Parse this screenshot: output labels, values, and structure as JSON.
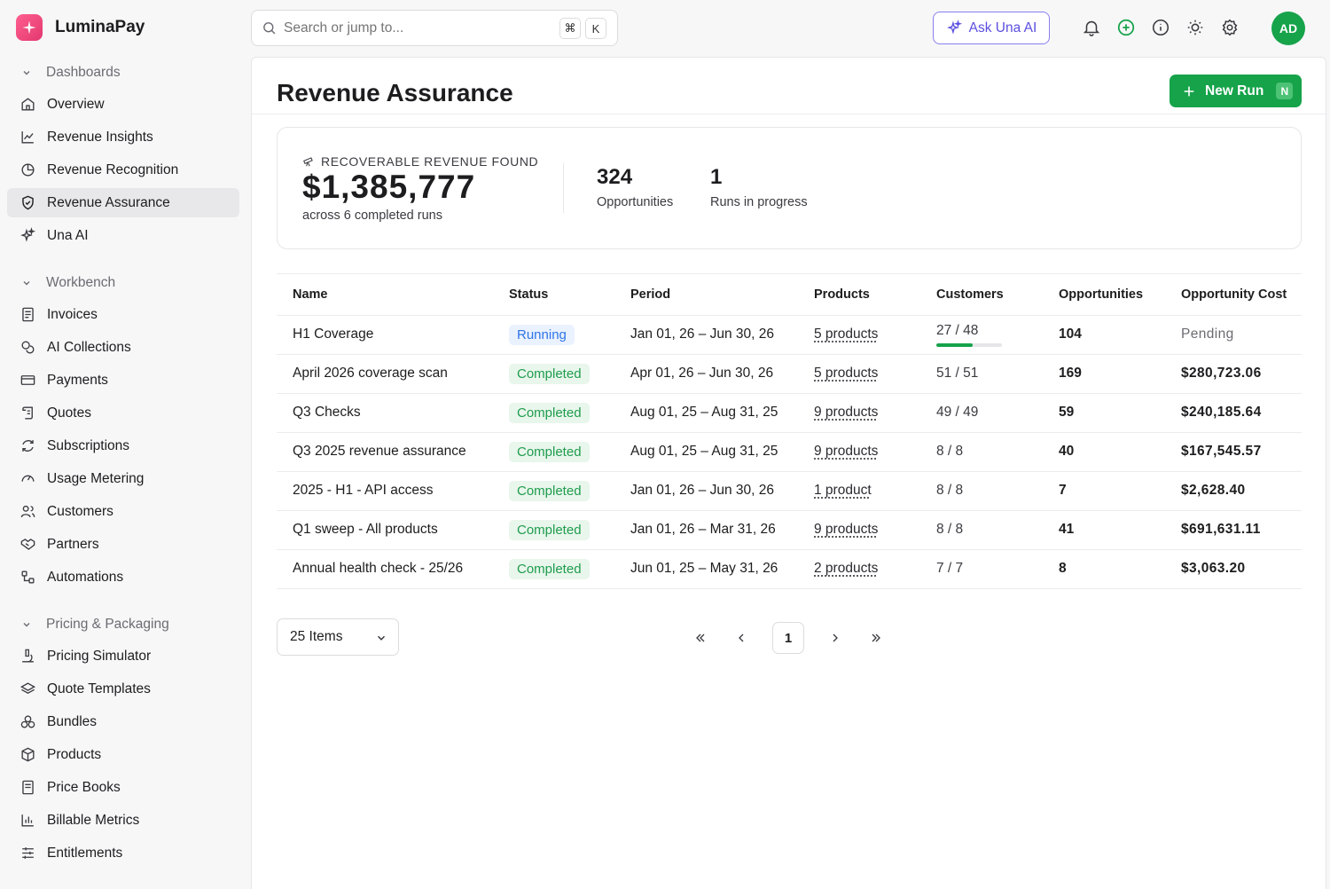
{
  "app": {
    "name": "LuminaPay"
  },
  "colors": {
    "brand": "#e83e74",
    "accent_green": "#16a34a",
    "ai_purple": "#5b4fe0",
    "running_blue": "#2f74e6"
  },
  "search": {
    "placeholder": "Search or jump to...",
    "shortcut_1": "⌘",
    "shortcut_2": "K"
  },
  "topbar": {
    "ask_ai": "Ask Una AI",
    "avatar_initials": "AD",
    "icons": [
      "bell-icon",
      "plus-circle-icon",
      "info-icon",
      "sun-icon",
      "gear-icon"
    ]
  },
  "sidebar": {
    "sections": [
      {
        "title": "Dashboards",
        "items": [
          {
            "label": "Overview",
            "icon": "home-icon"
          },
          {
            "label": "Revenue Insights",
            "icon": "line-chart-icon"
          },
          {
            "label": "Revenue Recognition",
            "icon": "pie-chart-icon"
          },
          {
            "label": "Revenue Assurance",
            "icon": "shield-check-icon",
            "active": true
          },
          {
            "label": "Una AI",
            "icon": "sparkles-icon"
          }
        ]
      },
      {
        "title": "Workbench",
        "items": [
          {
            "label": "Invoices",
            "icon": "invoice-icon"
          },
          {
            "label": "AI Collections",
            "icon": "coins-icon"
          },
          {
            "label": "Payments",
            "icon": "credit-card-icon"
          },
          {
            "label": "Quotes",
            "icon": "scroll-icon"
          },
          {
            "label": "Subscriptions",
            "icon": "refresh-icon"
          },
          {
            "label": "Usage Metering",
            "icon": "gauge-icon"
          },
          {
            "label": "Customers",
            "icon": "users-icon"
          },
          {
            "label": "Partners",
            "icon": "handshake-icon"
          },
          {
            "label": "Automations",
            "icon": "workflow-icon"
          }
        ]
      },
      {
        "title": "Pricing & Packaging",
        "items": [
          {
            "label": "Pricing Simulator",
            "icon": "microscope-icon"
          },
          {
            "label": "Quote Templates",
            "icon": "layers-icon"
          },
          {
            "label": "Bundles",
            "icon": "boxes-icon"
          },
          {
            "label": "Products",
            "icon": "package-icon"
          },
          {
            "label": "Price Books",
            "icon": "book-icon"
          },
          {
            "label": "Billable Metrics",
            "icon": "bar-chart-icon"
          },
          {
            "label": "Entitlements",
            "icon": "sliders-icon"
          }
        ]
      }
    ]
  },
  "page": {
    "title": "Revenue Assurance",
    "new_run": "New Run",
    "new_run_shortcut": "N"
  },
  "summary": {
    "label": "RECOVERABLE REVENUE FOUND",
    "value": "$1,385,777",
    "sub": "across 6 completed runs",
    "stats": [
      {
        "num": "324",
        "label": "Opportunities"
      },
      {
        "num": "1",
        "label": "Runs in progress"
      }
    ]
  },
  "table": {
    "headers": [
      "Name",
      "Status",
      "Period",
      "Products",
      "Customers",
      "Opportunities",
      "Opportunity Cost"
    ],
    "rows": [
      {
        "name": "H1 Coverage",
        "status": "Running",
        "period": "Jan 01, 26 – Jun 30, 26",
        "products": "5 products",
        "customers": "27 / 48",
        "progress": 0.56,
        "opportunities": "104",
        "cost": "Pending"
      },
      {
        "name": "April 2026 coverage scan",
        "status": "Completed",
        "period": "Apr 01, 26 – Jun 30, 26",
        "products": "5 products",
        "customers": "51 / 51",
        "opportunities": "169",
        "cost": "$280,723.06"
      },
      {
        "name": "Q3 Checks",
        "status": "Completed",
        "period": "Aug 01, 25 – Aug 31, 25",
        "products": "9 products",
        "customers": "49 / 49",
        "opportunities": "59",
        "cost": "$240,185.64"
      },
      {
        "name": "Q3 2025 revenue assurance",
        "status": "Completed",
        "period": "Aug 01, 25 – Aug 31, 25",
        "products": "9 products",
        "customers": "8 / 8",
        "opportunities": "40",
        "cost": "$167,545.57"
      },
      {
        "name": "2025 - H1 - API access",
        "status": "Completed",
        "period": "Jan 01, 26 – Jun 30, 26",
        "products": "1 product",
        "customers": "8 / 8",
        "opportunities": "7",
        "cost": "$2,628.40"
      },
      {
        "name": "Q1 sweep - All products",
        "status": "Completed",
        "period": "Jan 01, 26 – Mar 31, 26",
        "products": "9 products",
        "customers": "8 / 8",
        "opportunities": "41",
        "cost": "$691,631.11"
      },
      {
        "name": "Annual health check - 25/26",
        "status": "Completed",
        "period": "Jun 01, 25 – May 31, 26",
        "products": "2 products",
        "customers": "7 / 7",
        "opportunities": "8",
        "cost": "$3,063.20"
      }
    ]
  },
  "pagination": {
    "items_per_page": "25 Items",
    "current_page": "1"
  }
}
